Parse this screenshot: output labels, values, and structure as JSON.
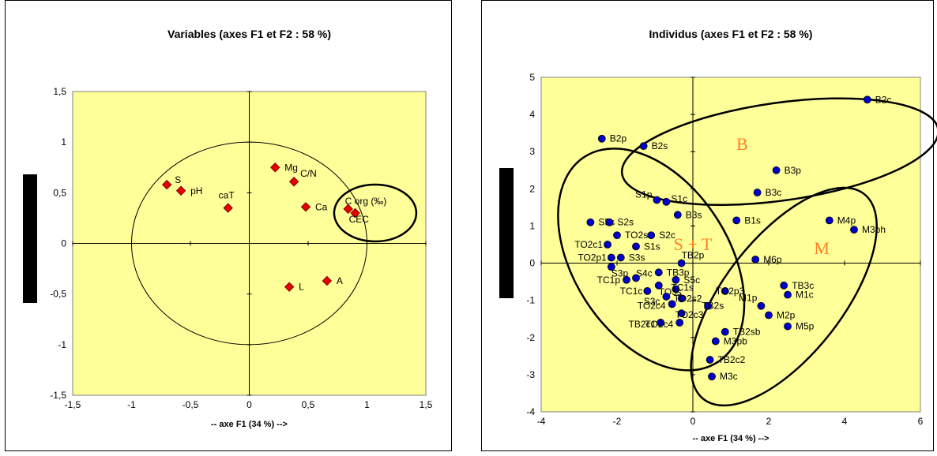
{
  "chart_data": [
    {
      "type": "scatter",
      "title": "Variables (axes F1 et F2 : 58 %)",
      "xlabel": "-- axe F1 (34 %) -->",
      "ylabel": "",
      "xlim": [
        -1.5,
        1.5
      ],
      "ylim": [
        -1.5,
        1.5
      ],
      "xticks": [
        "-1,5",
        "-1",
        "-0,5",
        "0",
        "0,5",
        "1",
        "1,5"
      ],
      "yticks": [
        "1,5",
        "1",
        "0,5",
        "0",
        "-0,5",
        "-1",
        "-1,5"
      ],
      "marker_color": "#e60000",
      "background_color": "#ffff99",
      "points": [
        {
          "label": "S",
          "x": -0.7,
          "y": 0.58
        },
        {
          "label": "pH",
          "x": -0.58,
          "y": 0.52
        },
        {
          "label": "caT",
          "x": -0.18,
          "y": 0.35
        },
        {
          "label": "Mg",
          "x": 0.22,
          "y": 0.75
        },
        {
          "label": "C/N",
          "x": 0.38,
          "y": 0.61
        },
        {
          "label": "Ca",
          "x": 0.48,
          "y": 0.36
        },
        {
          "label": "C org (‰)",
          "x": 0.84,
          "y": 0.34
        },
        {
          "label": "CEC",
          "x": 0.9,
          "y": 0.3
        },
        {
          "label": "L",
          "x": 0.34,
          "y": -0.43
        },
        {
          "label": "A",
          "x": 0.66,
          "y": -0.37
        }
      ]
    },
    {
      "type": "scatter",
      "title": "Individus (axes F1 et F2 : 58 %)",
      "xlabel": "-- axe F1 (34 %) -->",
      "ylabel": "",
      "xlim": [
        -4,
        6
      ],
      "ylim": [
        -4,
        5
      ],
      "xticks": [
        "-4",
        "-2",
        "0",
        "2",
        "4",
        "6"
      ],
      "yticks": [
        "5",
        "4",
        "3",
        "2",
        "1",
        "0",
        "-1",
        "-2",
        "-3",
        "-4"
      ],
      "marker_color": "#0000cc",
      "background_color": "#ffff99",
      "group_labels": [
        "B",
        "S + T",
        "M"
      ],
      "points": [
        {
          "label": "B2c",
          "x": 4.6,
          "y": 4.4
        },
        {
          "label": "B2p",
          "x": -2.4,
          "y": 3.35
        },
        {
          "label": "B2s",
          "x": -1.3,
          "y": 3.15
        },
        {
          "label": "B3p",
          "x": 2.2,
          "y": 2.5
        },
        {
          "label": "B3c",
          "x": 1.7,
          "y": 1.9
        },
        {
          "label": "S1p",
          "x": -0.95,
          "y": 1.7
        },
        {
          "label": "S1c",
          "x": -0.7,
          "y": 1.65
        },
        {
          "label": "B3s",
          "x": -0.4,
          "y": 1.3
        },
        {
          "label": "B1s",
          "x": 1.15,
          "y": 1.15
        },
        {
          "label": "M4p",
          "x": 3.6,
          "y": 1.15
        },
        {
          "label": "M3ph",
          "x": 4.25,
          "y": 0.9
        },
        {
          "label": "S5s",
          "x": -2.7,
          "y": 1.1
        },
        {
          "label": "S2s",
          "x": -2.2,
          "y": 1.1
        },
        {
          "label": "TO2s1",
          "x": -2.0,
          "y": 0.75
        },
        {
          "label": "S2c",
          "x": -1.1,
          "y": 0.75
        },
        {
          "label": "TO2c1",
          "x": -2.25,
          "y": 0.5
        },
        {
          "label": "S1s",
          "x": -1.5,
          "y": 0.45
        },
        {
          "label": "M6p",
          "x": 1.65,
          "y": 0.1
        },
        {
          "label": "TO2p1",
          "x": -2.15,
          "y": 0.15
        },
        {
          "label": "S3s",
          "x": -1.9,
          "y": 0.15
        },
        {
          "label": "TB2p",
          "x": -0.3,
          "y": 0.0
        },
        {
          "label": "S3p",
          "x": -2.15,
          "y": -0.1
        },
        {
          "label": "TB3p",
          "x": -0.9,
          "y": -0.25
        },
        {
          "label": "S4c",
          "x": -1.5,
          "y": -0.4
        },
        {
          "label": "TC1p",
          "x": -1.75,
          "y": -0.45
        },
        {
          "label": "S5c",
          "x": -0.45,
          "y": -0.45
        },
        {
          "label": "TB3c",
          "x": 2.4,
          "y": -0.6
        },
        {
          "label": "TC1s",
          "x": -0.45,
          "y": -0.7
        },
        {
          "label": "TO3s",
          "x": -0.9,
          "y": -0.6
        },
        {
          "label": "TO2p3",
          "x": 0.85,
          "y": -0.75
        },
        {
          "label": "TC1c",
          "x": -1.2,
          "y": -0.75
        },
        {
          "label": "M1c",
          "x": 2.5,
          "y": -0.85
        },
        {
          "label": "S3c",
          "x": -0.7,
          "y": -0.9
        },
        {
          "label": "TO2s2",
          "x": -0.3,
          "y": -0.95
        },
        {
          "label": "M1p",
          "x": 1.8,
          "y": -1.15
        },
        {
          "label": "TO2c4",
          "x": -0.55,
          "y": -1.1
        },
        {
          "label": "TB2s",
          "x": 0.4,
          "y": -1.15
        },
        {
          "label": "TO2c3",
          "x": -0.3,
          "y": -1.35
        },
        {
          "label": "M2p",
          "x": 2.0,
          "y": -1.4
        },
        {
          "label": "TB2c1",
          "x": -0.85,
          "y": -1.6
        },
        {
          "label": "TO2c4",
          "x": -0.35,
          "y": -1.6
        },
        {
          "label": "TB2sb",
          "x": 0.85,
          "y": -1.85
        },
        {
          "label": "M5p",
          "x": 2.5,
          "y": -1.7
        },
        {
          "label": "M3pb",
          "x": 0.6,
          "y": -2.1
        },
        {
          "label": "TB2c2",
          "x": 0.45,
          "y": -2.6
        },
        {
          "label": "M3c",
          "x": 0.5,
          "y": -3.05
        }
      ]
    }
  ]
}
